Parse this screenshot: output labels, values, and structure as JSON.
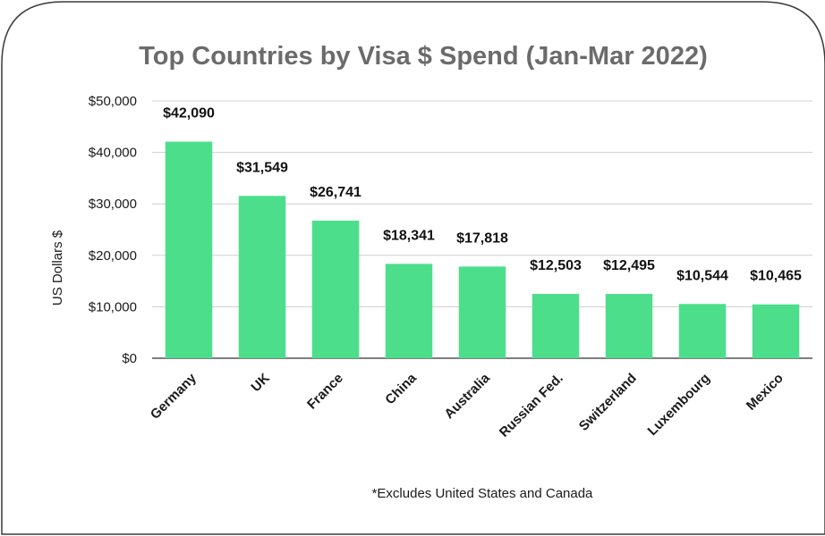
{
  "chart_data": {
    "type": "bar",
    "title": "Top Countries by Visa $ Spend (Jan-Mar 2022)",
    "ylabel": "US Dollars $",
    "xlabel": "",
    "categories": [
      "Germany",
      "UK",
      "France",
      "China",
      "Australia",
      "Russian Fed.",
      "Switzerland",
      "Luxembourg",
      "Mexico"
    ],
    "values": [
      42090,
      31549,
      26741,
      18341,
      17818,
      12503,
      12495,
      10544,
      10465
    ],
    "data_labels": [
      "$42,090",
      "$31,549",
      "$26,741",
      "$18,341",
      "$17,818",
      "$12,503",
      "$12,495",
      "$10,544",
      "$10,465"
    ],
    "ylim": [
      0,
      50000
    ],
    "yticks": [
      0,
      10000,
      20000,
      30000,
      40000,
      50000
    ],
    "ytick_labels": [
      "$0",
      "$10,000",
      "$20,000",
      "$30,000",
      "$40,000",
      "$50,000"
    ],
    "grid": true,
    "bar_color": "#4dde8c",
    "footnote": "*Excludes United States and Canada"
  }
}
